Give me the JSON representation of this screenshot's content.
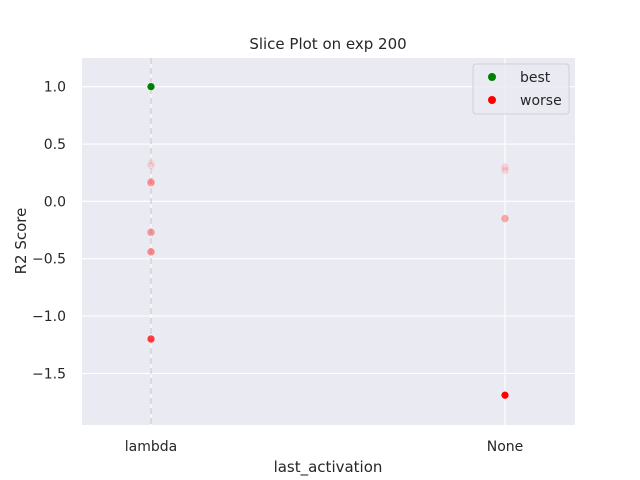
{
  "chart_data": {
    "type": "scatter",
    "title": "Slice Plot on exp 200",
    "xlabel": "last_activation",
    "ylabel": "R2 Score",
    "categories": [
      "lambda",
      "None"
    ],
    "yticks": [
      1.0,
      0.5,
      0.0,
      -0.5,
      -1.0,
      -1.5
    ],
    "ytick_labels": [
      "1.0",
      "0.5",
      "0.0",
      "−0.5",
      "−1.0",
      "−1.5"
    ],
    "ylim": [
      -1.95,
      1.25
    ],
    "grid": true,
    "background_color": "#eaeaf2",
    "legend": {
      "placement": "top-right",
      "entries": [
        {
          "label": "best",
          "color": "#008000"
        },
        {
          "label": "worse",
          "color": "#ff0000"
        }
      ]
    },
    "series": [
      {
        "name": "best",
        "color": "#008000",
        "points": [
          {
            "x": "lambda",
            "y": 1.0,
            "alpha": 1.0
          }
        ]
      },
      {
        "name": "worse",
        "color": "#ff0000",
        "points": [
          {
            "x": "lambda",
            "y": 0.33,
            "alpha": 0.08
          },
          {
            "x": "lambda",
            "y": 0.31,
            "alpha": 0.08
          },
          {
            "x": "lambda",
            "y": 0.17,
            "alpha": 0.25
          },
          {
            "x": "lambda",
            "y": 0.16,
            "alpha": 0.2
          },
          {
            "x": "lambda",
            "y": -0.27,
            "alpha": 0.35
          },
          {
            "x": "lambda",
            "y": -0.44,
            "alpha": 0.4
          },
          {
            "x": "lambda",
            "y": -1.2,
            "alpha": 0.75
          },
          {
            "x": "None",
            "y": 0.3,
            "alpha": 0.12
          },
          {
            "x": "None",
            "y": 0.27,
            "alpha": 0.12
          },
          {
            "x": "None",
            "y": -0.15,
            "alpha": 0.3
          },
          {
            "x": "None",
            "y": -1.69,
            "alpha": 1.0
          }
        ]
      }
    ],
    "best_line": {
      "x": "lambda",
      "style": "dashed"
    }
  }
}
